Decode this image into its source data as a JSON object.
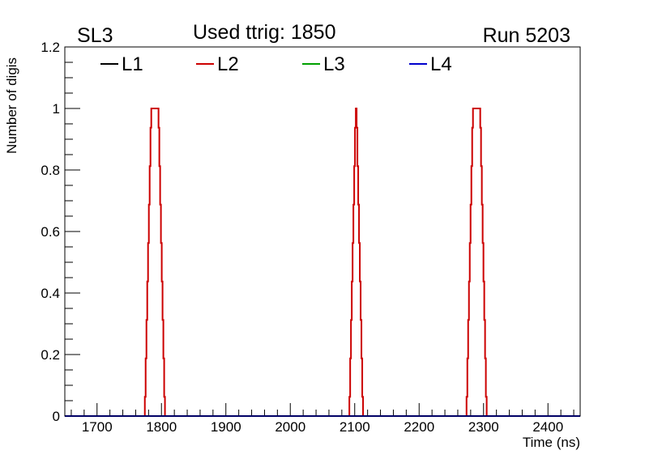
{
  "chart_data": {
    "type": "histogram",
    "title": "Used ttrig: 1850",
    "top_left_label": "SL3",
    "top_right_label": "Run 5203",
    "xlabel": "Time (ns)",
    "ylabel": "Number of digis",
    "xlim": [
      1650,
      2450
    ],
    "ylim": [
      0,
      1.2
    ],
    "x_major_step": 100,
    "x_minor_step": 20,
    "y_major_step": 0.2,
    "y_minor_step": 0.05,
    "x_ticks": [
      "1700",
      "1800",
      "1900",
      "2000",
      "2100",
      "2200",
      "2300",
      "2400"
    ],
    "y_ticks": [
      "0",
      "0.2",
      "0.4",
      "0.6",
      "0.8",
      "1",
      "1.2"
    ],
    "legend_placement": "top, horizontal",
    "bin_width": 1.25,
    "series": [
      {
        "name": "L1",
        "color": "#000000",
        "peaks": []
      },
      {
        "name": "L2",
        "color": "#cc0000",
        "peaks": [
          {
            "start": 1774.2,
            "values": [
              0.0625,
              0.1875,
              0.3125,
              0.4375,
              0.5625,
              0.6875,
              0.8125,
              0.9375,
              1,
              1,
              1,
              1,
              1,
              1,
              1,
              1,
              1,
              0.9375,
              0.8125,
              0.6875,
              0.5625,
              0.4375,
              0.3125,
              0.1875,
              0.0625
            ]
          },
          {
            "start": 2091.7,
            "values": [
              0.0625,
              0.1875,
              0.3125,
              0.4375,
              0.5625,
              0.6875,
              0.8125,
              0.9375,
              1,
              0.9375,
              0.8125,
              0.6875,
              0.5625,
              0.4375,
              0.3125,
              0.1875,
              0.0625
            ]
          },
          {
            "start": 2273.6,
            "values": [
              0.0625,
              0.1875,
              0.3125,
              0.4375,
              0.5625,
              0.6875,
              0.8125,
              0.9375,
              1,
              1,
              1,
              1,
              1,
              1,
              1,
              1,
              1,
              0.9375,
              0.8125,
              0.6875,
              0.5625,
              0.4375,
              0.3125,
              0.1875,
              0.0625
            ]
          }
        ]
      },
      {
        "name": "L3",
        "color": "#00a000",
        "peaks": []
      },
      {
        "name": "L4",
        "color": "#0000cc",
        "peaks": []
      }
    ]
  }
}
